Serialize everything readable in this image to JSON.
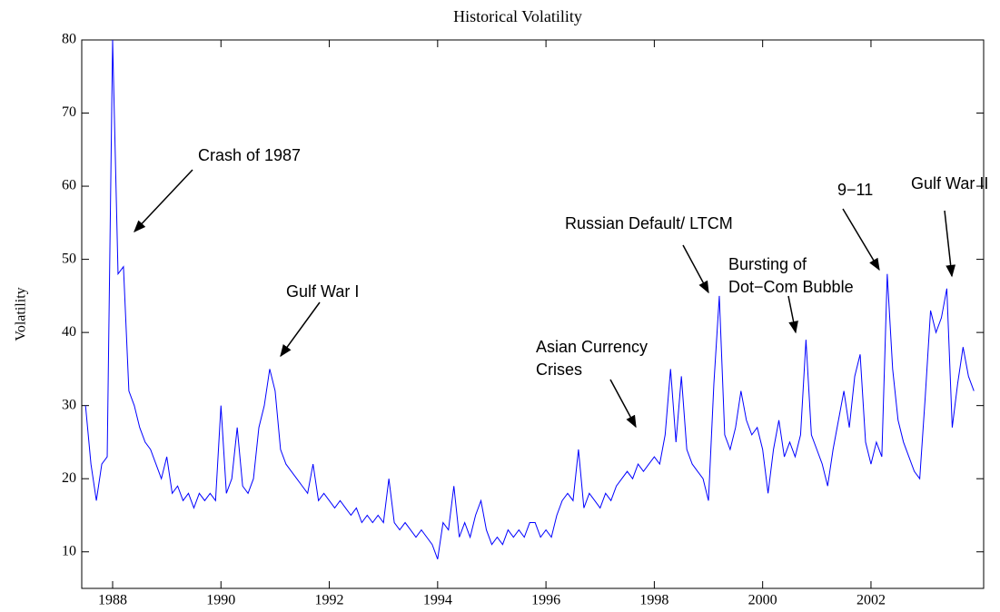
{
  "chart_data": {
    "type": "line",
    "title": "Historical Volatility",
    "y_label": "Volatility",
    "xlim": [
      1987.43,
      2004.08
    ],
    "ylim": [
      5,
      80
    ],
    "xticks": [
      1988,
      1990,
      1992,
      1994,
      1996,
      1998,
      2000,
      2002
    ],
    "yticks": [
      10,
      20,
      30,
      40,
      50,
      60,
      70,
      80
    ],
    "series": [
      {
        "name": "Volatility",
        "color": "#0000ff",
        "x": [
          1987.5,
          1987.6,
          1987.7,
          1987.8,
          1987.9,
          1988.0,
          1988.1,
          1988.2,
          1988.3,
          1988.4,
          1988.5,
          1988.6,
          1988.7,
          1988.8,
          1988.9,
          1989.0,
          1989.1,
          1989.2,
          1989.3,
          1989.4,
          1989.5,
          1989.6,
          1989.7,
          1989.8,
          1989.9,
          1990.0,
          1990.1,
          1990.2,
          1990.3,
          1990.4,
          1990.5,
          1990.6,
          1990.7,
          1990.8,
          1990.9,
          1991.0,
          1991.1,
          1991.2,
          1991.3,
          1991.4,
          1991.5,
          1991.6,
          1991.7,
          1991.8,
          1991.9,
          1992.0,
          1992.1,
          1992.2,
          1992.3,
          1992.4,
          1992.5,
          1992.6,
          1992.7,
          1992.8,
          1992.9,
          1993.0,
          1993.1,
          1993.2,
          1993.3,
          1993.4,
          1993.5,
          1993.6,
          1993.7,
          1993.8,
          1993.9,
          1994.0,
          1994.1,
          1994.2,
          1994.3,
          1994.4,
          1994.5,
          1994.6,
          1994.7,
          1994.8,
          1994.9,
          1995.0,
          1995.1,
          1995.2,
          1995.3,
          1995.4,
          1995.5,
          1995.6,
          1995.7,
          1995.8,
          1995.9,
          1996.0,
          1996.1,
          1996.2,
          1996.3,
          1996.4,
          1996.5,
          1996.6,
          1996.7,
          1996.8,
          1996.9,
          1997.0,
          1997.1,
          1997.2,
          1997.3,
          1997.4,
          1997.5,
          1997.6,
          1997.7,
          1997.8,
          1997.9,
          1998.0,
          1998.1,
          1998.2,
          1998.3,
          1998.4,
          1998.5,
          1998.6,
          1998.7,
          1998.8,
          1998.9,
          1999.0,
          1999.1,
          1999.2,
          1999.3,
          1999.4,
          1999.5,
          1999.6,
          1999.7,
          1999.8,
          1999.9,
          2000.0,
          2000.1,
          2000.2,
          2000.3,
          2000.4,
          2000.5,
          2000.6,
          2000.7,
          2000.8,
          2000.9,
          2001.0,
          2001.1,
          2001.2,
          2001.3,
          2001.4,
          2001.5,
          2001.6,
          2001.7,
          2001.8,
          2001.9,
          2002.0,
          2002.1,
          2002.2,
          2002.3,
          2002.4,
          2002.5,
          2002.6,
          2002.7,
          2002.8,
          2002.9,
          2003.0,
          2003.1,
          2003.2,
          2003.3,
          2003.4,
          2003.5,
          2003.6,
          2003.7,
          2003.8,
          2003.9
        ],
        "values": [
          30,
          22,
          17,
          22,
          23,
          80,
          48,
          49,
          32,
          30,
          27,
          25,
          24,
          22,
          20,
          23,
          18,
          19,
          17,
          18,
          16,
          18,
          17,
          18,
          17,
          30,
          18,
          20,
          27,
          19,
          18,
          20,
          27,
          30,
          35,
          32,
          24,
          22,
          21,
          20,
          19,
          18,
          22,
          17,
          18,
          17,
          16,
          17,
          16,
          15,
          16,
          14,
          15,
          14,
          15,
          14,
          20,
          14,
          13,
          14,
          13,
          12,
          13,
          12,
          11,
          9,
          14,
          13,
          19,
          12,
          14,
          12,
          15,
          17,
          13,
          11,
          12,
          11,
          13,
          12,
          13,
          12,
          14,
          14,
          12,
          13,
          12,
          15,
          17,
          18,
          17,
          24,
          16,
          18,
          17,
          16,
          18,
          17,
          19,
          20,
          21,
          20,
          22,
          21,
          22,
          23,
          22,
          26,
          35,
          25,
          34,
          24,
          22,
          21,
          20,
          17,
          33,
          45,
          26,
          24,
          27,
          32,
          28,
          26,
          27,
          24,
          18,
          24,
          28,
          23,
          25,
          23,
          26,
          39,
          26,
          24,
          22,
          19,
          24,
          28,
          32,
          27,
          34,
          37,
          25,
          22,
          25,
          23,
          48,
          35,
          28,
          25,
          23,
          21,
          20,
          31,
          43,
          40,
          42,
          46,
          27,
          33,
          38,
          34,
          32
        ]
      }
    ],
    "annotations": [
      {
        "text": [
          "Crash of 1987"
        ]
      },
      {
        "text": [
          "Gulf War I"
        ]
      },
      {
        "text": [
          "Asian Currency",
          "Crises"
        ]
      },
      {
        "text": [
          "Russian Default/ LTCM"
        ]
      },
      {
        "text": [
          "Bursting of",
          "Dot−Com Bubble"
        ]
      },
      {
        "text": [
          "9−11"
        ]
      },
      {
        "text": [
          "Gulf War II"
        ]
      }
    ]
  }
}
